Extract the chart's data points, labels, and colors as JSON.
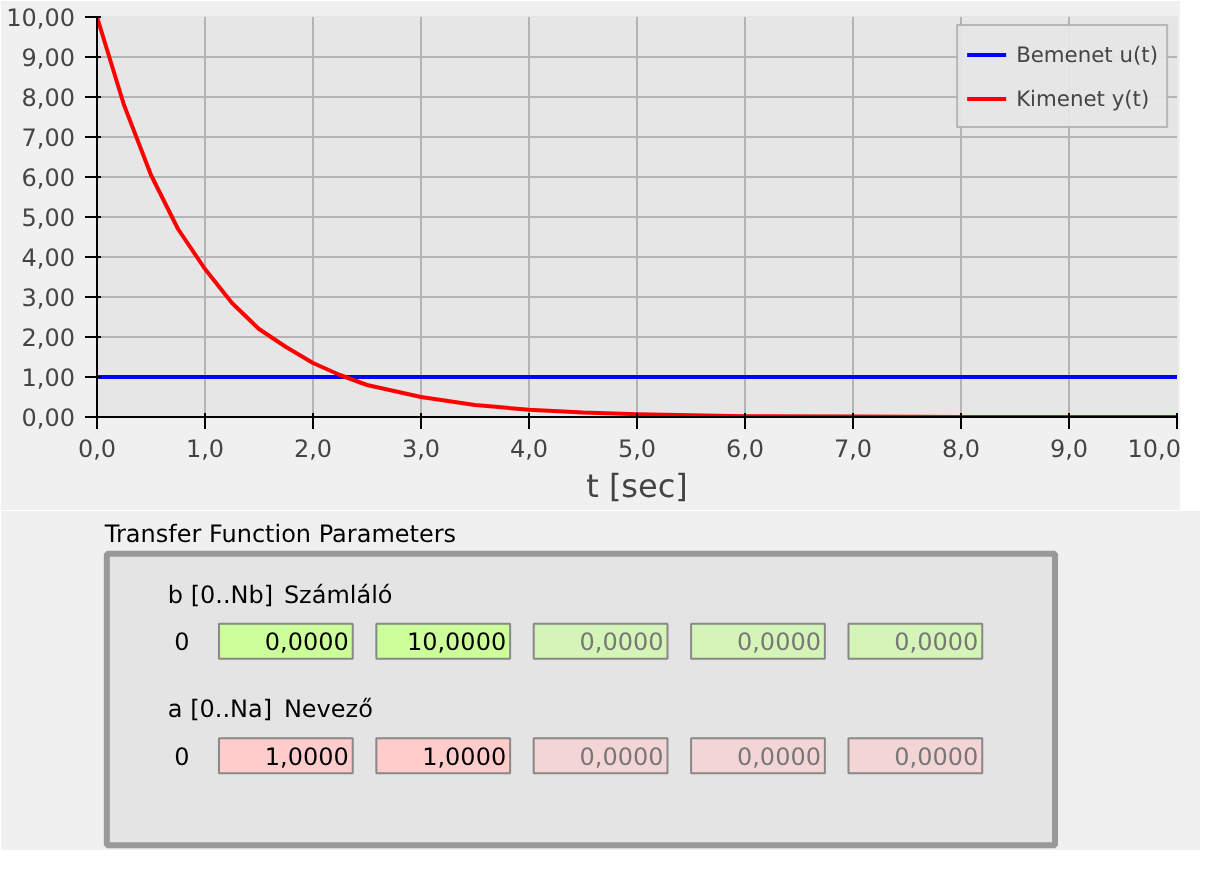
{
  "chart_data": [
    {
      "type": "line",
      "xlabel": "t [sec]",
      "xlim": [
        0,
        10
      ],
      "ylim": [
        0,
        10
      ],
      "xticks": [
        {
          "value": 0,
          "label": "0,0"
        },
        {
          "value": 1,
          "label": "1,0"
        },
        {
          "value": 2,
          "label": "2,0"
        },
        {
          "value": 3,
          "label": "3,0"
        },
        {
          "value": 4,
          "label": "4,0"
        },
        {
          "value": 5,
          "label": "5,0"
        },
        {
          "value": 6,
          "label": "6,0"
        },
        {
          "value": 7,
          "label": "7,0"
        },
        {
          "value": 8,
          "label": "8,0"
        },
        {
          "value": 9,
          "label": "9,0"
        },
        {
          "value": 10,
          "label": "10,0"
        }
      ],
      "yticks": [
        {
          "value": 0,
          "label": "0,00"
        },
        {
          "value": 1,
          "label": "1,00"
        },
        {
          "value": 2,
          "label": "2,00"
        },
        {
          "value": 3,
          "label": "3,00"
        },
        {
          "value": 4,
          "label": "4,00"
        },
        {
          "value": 5,
          "label": "5,00"
        },
        {
          "value": 6,
          "label": "6,00"
        },
        {
          "value": 7,
          "label": "7,00"
        },
        {
          "value": 8,
          "label": "8,00"
        },
        {
          "value": 9,
          "label": "9,00"
        },
        {
          "value": 10,
          "label": "10,00"
        }
      ],
      "grid": true,
      "legend": "top right",
      "marker": "none",
      "line_style": "solid",
      "series": [
        {
          "name": "Bemenet u(t)",
          "color": "#0000ff",
          "x": [
            0,
            10
          ],
          "values": [
            1,
            1
          ]
        },
        {
          "name": "Kimenet y(t)",
          "color": "#ff0000",
          "x": [
            0,
            0.25,
            0.5,
            0.75,
            1,
            1.25,
            1.5,
            1.75,
            2,
            2.25,
            2.5,
            3,
            3.5,
            4,
            4.5,
            5,
            6,
            7,
            8,
            10
          ],
          "values": [
            10,
            7.8,
            6.05,
            4.7,
            3.7,
            2.85,
            2.2,
            1.75,
            1.35,
            1.05,
            0.8,
            0.5,
            0.3,
            0.18,
            0.11,
            0.07,
            0.02,
            0.01,
            0,
            0
          ]
        }
      ]
    },
    {
      "type": "other",
      "title": "Transfer Function Parameters",
      "annotations": [
        "b [0..Nb]",
        "Számláló",
        "0",
        "0,0000",
        "10,0000",
        "0,0000",
        "0,0000",
        "0,0000",
        "a [0..Na]",
        "Nevező",
        "0",
        "1,0000",
        "1,0000",
        "0,0000",
        "0,0000",
        "0,0000"
      ]
    }
  ]
}
